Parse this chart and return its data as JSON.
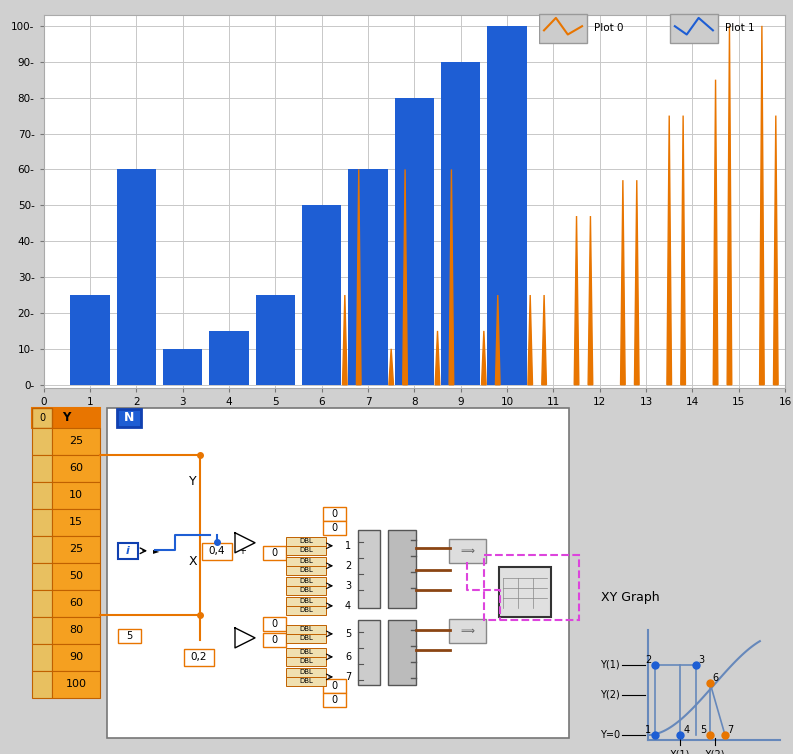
{
  "plot_bg": "#ffffff",
  "outer_bg": "#d0d0d0",
  "blue_color": "#1e5ed4",
  "orange_color": "#e87500",
  "bar_blue_x": [
    1,
    2,
    3,
    4,
    5,
    6,
    7,
    8,
    9,
    10
  ],
  "bar_blue_y": [
    25,
    60,
    10,
    15,
    25,
    50,
    60,
    80,
    90,
    100
  ],
  "orange_spikes": [
    {
      "x": [
        6.45,
        6.5,
        6.55
      ],
      "y": [
        0,
        25,
        0
      ]
    },
    {
      "x": [
        6.75,
        6.8,
        6.85
      ],
      "y": [
        0,
        60,
        0
      ]
    },
    {
      "x": [
        7.45,
        7.5,
        7.55
      ],
      "y": [
        0,
        10,
        0
      ]
    },
    {
      "x": [
        7.75,
        7.8,
        7.85
      ],
      "y": [
        0,
        60,
        0
      ]
    },
    {
      "x": [
        8.45,
        8.5,
        8.55
      ],
      "y": [
        0,
        15,
        0
      ]
    },
    {
      "x": [
        8.75,
        8.8,
        8.85
      ],
      "y": [
        0,
        60,
        0
      ]
    },
    {
      "x": [
        9.45,
        9.5,
        9.55
      ],
      "y": [
        0,
        15,
        0
      ]
    },
    {
      "x": [
        9.75,
        9.8,
        9.85
      ],
      "y": [
        0,
        25,
        0
      ]
    },
    {
      "x": [
        10.45,
        10.5,
        10.55
      ],
      "y": [
        0,
        25,
        0
      ]
    },
    {
      "x": [
        10.75,
        10.8,
        10.85
      ],
      "y": [
        0,
        25,
        0
      ]
    },
    {
      "x": [
        11.45,
        11.5,
        11.55
      ],
      "y": [
        0,
        47,
        0
      ]
    },
    {
      "x": [
        11.75,
        11.8,
        11.85
      ],
      "y": [
        0,
        47,
        0
      ]
    },
    {
      "x": [
        12.45,
        12.5,
        12.55
      ],
      "y": [
        0,
        57,
        0
      ]
    },
    {
      "x": [
        12.75,
        12.8,
        12.85
      ],
      "y": [
        0,
        57,
        0
      ]
    },
    {
      "x": [
        13.45,
        13.5,
        13.55
      ],
      "y": [
        0,
        75,
        0
      ]
    },
    {
      "x": [
        13.75,
        13.8,
        13.85
      ],
      "y": [
        0,
        75,
        0
      ]
    },
    {
      "x": [
        14.45,
        14.5,
        14.55
      ],
      "y": [
        0,
        85,
        0
      ]
    },
    {
      "x": [
        14.75,
        14.8,
        14.85
      ],
      "y": [
        0,
        100,
        0
      ]
    },
    {
      "x": [
        15.45,
        15.5,
        15.55
      ],
      "y": [
        0,
        100,
        0
      ]
    },
    {
      "x": [
        15.75,
        15.8,
        15.85
      ],
      "y": [
        0,
        75,
        0
      ]
    }
  ],
  "xlim": [
    0,
    16
  ],
  "ylim": [
    -1,
    103
  ],
  "yticks": [
    0,
    10,
    20,
    30,
    40,
    50,
    60,
    70,
    80,
    90,
    100
  ],
  "xticks": [
    0,
    1,
    2,
    3,
    4,
    5,
    6,
    7,
    8,
    9,
    10,
    11,
    12,
    13,
    14,
    15,
    16
  ],
  "grid_color": "#c8c8c8",
  "bottom_bg": "#d0d0d0",
  "panel_bg": "#ffffff",
  "panel_border": "#888888",
  "arr_bg": "#e87500",
  "arr_cell_bg": "#f5a020",
  "arr_border": "#c06000",
  "arr_items": [
    "25",
    "60",
    "10",
    "15",
    "25",
    "50",
    "60",
    "80",
    "90",
    "100"
  ],
  "n_box_color": "#1e5ed4",
  "dbl_bg": "#f0e0b0",
  "dbl_border": "#c06000",
  "input_border": "#e87500",
  "wire_orange": "#e87500",
  "wire_brown": "#8B4513",
  "wire_blue": "#1e5ed4",
  "wire_pink": "#dd44dd",
  "xy_diagram_color": "#6688bb"
}
